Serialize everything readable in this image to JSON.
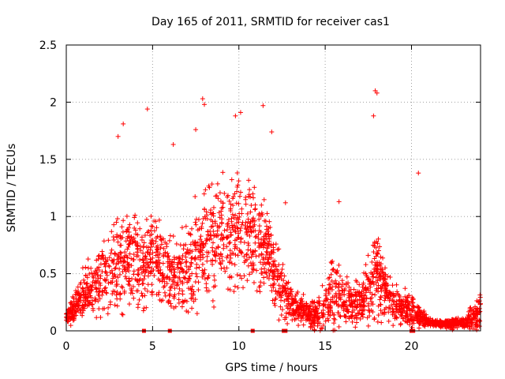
{
  "chart_data": {
    "type": "scatter",
    "title": "Day 165 of 2011, SRMTID for receiver cas1",
    "xlabel": "GPS time / hours",
    "ylabel": "SRMTID / TECUs",
    "xlim": [
      0,
      24
    ],
    "ylim": [
      0,
      2.5
    ],
    "x_ticks": [
      0,
      5,
      10,
      15,
      20
    ],
    "x_tick_labels": [
      "0",
      "5",
      "10",
      "15",
      "20"
    ],
    "y_ticks": [
      0,
      0.5,
      1,
      1.5,
      2,
      2.5
    ],
    "y_tick_labels": [
      "0",
      "0.5",
      "1",
      "1.5",
      "2",
      "2.5"
    ],
    "grid": true,
    "marker": "+",
    "color": "#ff0000",
    "series": [
      {
        "name": "cas1 SRMTID",
        "profile_x": [
          0,
          0.5,
          1,
          1.5,
          2,
          2.5,
          3,
          3.5,
          4,
          4.5,
          5,
          5.5,
          6,
          6.5,
          7,
          7.5,
          8,
          8.5,
          9,
          9.5,
          10,
          10.5,
          11,
          11.5,
          12,
          12.5,
          13,
          13.5,
          14,
          14.5,
          15,
          15.5,
          16,
          16.5,
          17,
          17.5,
          18,
          18.5,
          19,
          19.5,
          20,
          20.5,
          21,
          21.5,
          22,
          22.5,
          23,
          23.5,
          24
        ],
        "profile_median": [
          0.12,
          0.2,
          0.3,
          0.4,
          0.45,
          0.55,
          0.6,
          0.62,
          0.6,
          0.55,
          0.65,
          0.6,
          0.5,
          0.45,
          0.55,
          0.65,
          0.75,
          0.8,
          0.85,
          0.85,
          0.9,
          0.85,
          0.8,
          0.75,
          0.55,
          0.35,
          0.25,
          0.2,
          0.15,
          0.15,
          0.2,
          0.3,
          0.3,
          0.25,
          0.25,
          0.35,
          0.5,
          0.35,
          0.25,
          0.2,
          0.18,
          0.12,
          0.08,
          0.06,
          0.06,
          0.07,
          0.07,
          0.1,
          0.15
        ],
        "profile_spread": [
          0.1,
          0.2,
          0.3,
          0.35,
          0.45,
          0.55,
          0.6,
          0.6,
          0.55,
          0.5,
          0.55,
          0.5,
          0.45,
          0.45,
          0.55,
          0.6,
          0.65,
          0.65,
          0.65,
          0.65,
          0.7,
          0.65,
          0.6,
          0.55,
          0.45,
          0.35,
          0.25,
          0.2,
          0.15,
          0.2,
          0.3,
          0.45,
          0.3,
          0.25,
          0.3,
          0.4,
          0.65,
          0.35,
          0.25,
          0.2,
          0.25,
          0.1,
          0.05,
          0.04,
          0.05,
          0.07,
          0.06,
          0.15,
          0.25
        ],
        "notable_points": [
          {
            "x": 3.0,
            "y": 1.7
          },
          {
            "x": 3.3,
            "y": 1.81
          },
          {
            "x": 4.7,
            "y": 1.94
          },
          {
            "x": 6.2,
            "y": 1.63
          },
          {
            "x": 7.5,
            "y": 1.76
          },
          {
            "x": 7.9,
            "y": 2.03
          },
          {
            "x": 8.0,
            "y": 1.98
          },
          {
            "x": 9.8,
            "y": 1.88
          },
          {
            "x": 10.1,
            "y": 1.91
          },
          {
            "x": 11.4,
            "y": 1.97
          },
          {
            "x": 11.9,
            "y": 1.74
          },
          {
            "x": 17.9,
            "y": 2.1
          },
          {
            "x": 18.0,
            "y": 2.08
          },
          {
            "x": 17.8,
            "y": 1.88
          },
          {
            "x": 20.4,
            "y": 1.38
          },
          {
            "x": 12.7,
            "y": 1.12
          },
          {
            "x": 15.8,
            "y": 1.13
          }
        ],
        "baseline_gaps_x": [
          4.5,
          6.0,
          10.8,
          12.6,
          12.7,
          20.0,
          20.1
        ]
      }
    ]
  }
}
